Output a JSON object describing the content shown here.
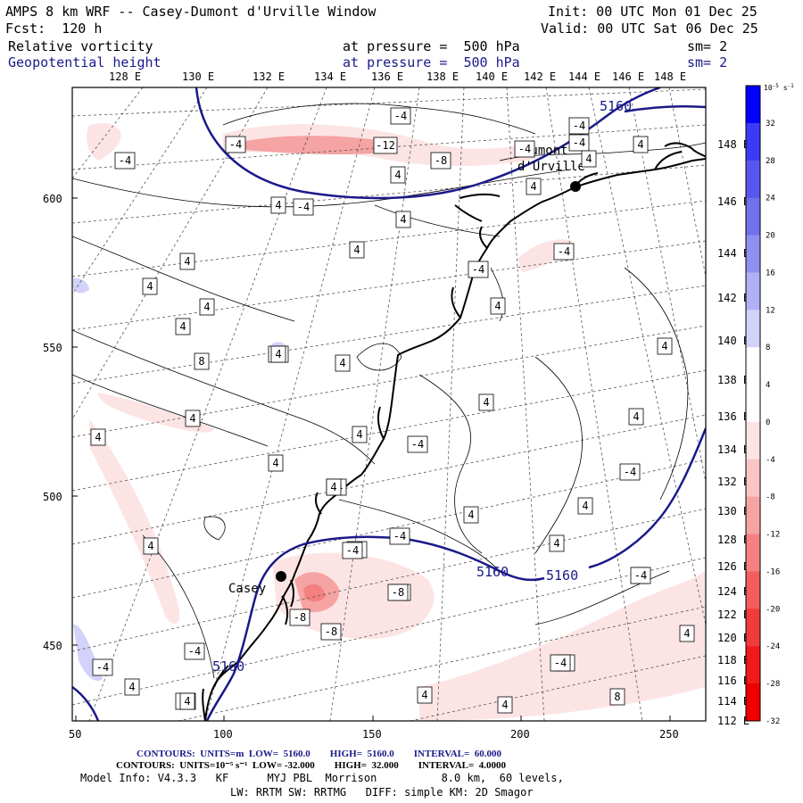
{
  "header": {
    "title": "AMPS 8 km WRF -- Casey-Dumont d'Urville Window",
    "init": "Init: 00 UTC Mon 01 Dec 25",
    "fcst": "Fcst:  120 h",
    "valid": "Valid: 00 UTC Sat 06 Dec 25",
    "field1": {
      "name": "Relative vorticity",
      "level": "at pressure =  500 hPa",
      "sm": "sm= 2"
    },
    "field2": {
      "name": "Geopotential height",
      "level": "at pressure =  500 hPa",
      "sm": "sm= 2"
    }
  },
  "top_lon_labels": [
    "128 E",
    "130 E",
    "132 E",
    "134 E",
    "136 E",
    "138 E",
    "140 E",
    "142 E",
    "144 E",
    "146 E",
    "148 E"
  ],
  "right_lat_labels": [
    "148 E",
    "146 E",
    "144 E",
    "142 E",
    "140 E",
    "138 E",
    "136 E",
    "134 E",
    "132 E",
    "130 E",
    "128 E",
    "126 E",
    "124 E",
    "122 E",
    "120 E",
    "118 E",
    "116 E",
    "114 E",
    "112 E"
  ],
  "left_axis_labels": [
    "600",
    "550",
    "500",
    "450"
  ],
  "bottom_axis_labels": [
    "50",
    "100",
    "150",
    "200",
    "250"
  ],
  "stations": {
    "casey": "Casey",
    "dumont": "Dumont\nd'Urville"
  },
  "height_labels": [
    "5160",
    "5160",
    "5160",
    "5160"
  ],
  "vort_labels": [
    "-4",
    "-4",
    "-12",
    "-4",
    "-4",
    "4",
    "-8",
    "-4",
    "4",
    "-4",
    "4",
    "4",
    "-4",
    "4",
    "4",
    "4",
    "-4",
    "4",
    "-4",
    "4",
    "4",
    "4",
    "4",
    "-4",
    "4",
    "4",
    "8",
    "4",
    "4",
    "4",
    "4",
    "-4",
    "4",
    "4",
    "-4",
    "4",
    "-4",
    "4",
    "4",
    "4",
    "4",
    "-4",
    "-4",
    "4",
    "-4",
    "-4",
    "-8",
    "-8",
    "-4",
    "-4",
    "4",
    "4",
    "8",
    "-4",
    "4",
    "4",
    "-4",
    "-8",
    "-4",
    "4",
    "-4",
    "4"
  ],
  "colorbar": {
    "units": "10^-5 s^-1",
    "ticks": [
      "32",
      "28",
      "24",
      "20",
      "16",
      "12",
      "8",
      "4",
      "0",
      "-4",
      "-8",
      "-12",
      "-16",
      "-20",
      "-24",
      "-28",
      "-32"
    ],
    "colors": [
      "#0000ff",
      "#3b3bf5",
      "#5757ef",
      "#7171ec",
      "#9090f0",
      "#b0b0f5",
      "#d2d2fa",
      "#ffffff",
      "#ffffff",
      "#fde4e4",
      "#f8c4c4",
      "#f5a3a3",
      "#f48080",
      "#f25d5d",
      "#f13b3b",
      "#f01a1a",
      "#ee0000"
    ]
  },
  "footer": {
    "line1": "CONTOURS:  UNITS=m  LOW=  5160.0        HIGH=  5160.0        INTERVAL=  60.000",
    "line2": "CONTOURS:  UNITS=10⁻⁵ s⁻¹  LOW= -32.000        HIGH=  32.000        INTERVAL=  4.0000",
    "line3": "Model Info: V4.3.3   KF      MYJ PBL  Morrison          8.0 km,  60 levels,",
    "line4": "LW: RRTM SW: RRTMG   DIFF: simple KM: 2D Smagor"
  }
}
